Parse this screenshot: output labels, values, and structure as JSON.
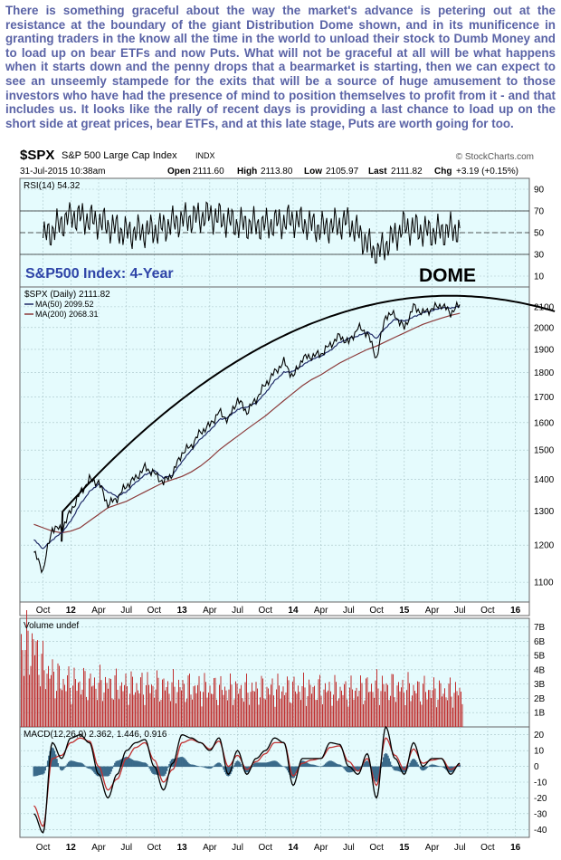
{
  "commentary": "There is something graceful about the way the market's advance is petering out at the resistance at the boundary of the giant Distribution Dome shown, and in its munificence in granting traders in the know all the time in the world to unload their stock to Dumb Money and to load up on bear ETFs and now Puts. What will not be graceful at all will be what happens when it starts down and the penny drops that a bearmarket is starting, then we can expect to see an unseemly stampede for the exits that will be a source of huge amusement to those investors who have had the presence of mind to position themselves to profit from it - and that includes us. It looks like the rally of recent days is providing a last chance to load up on the short side at great prices, bear ETFs, and at this late stage, Puts are worth going for too.",
  "header": {
    "symbol": "$SPX",
    "name": "S&P 500 Large Cap Index",
    "exchange": "INDX",
    "date": "31-Jul-2015 10:38am",
    "brand": "© StockCharts.com",
    "open_label": "Open",
    "open": "2111.60",
    "high_label": "High",
    "high": "2113.80",
    "low_label": "Low",
    "low": "2105.97",
    "last_label": "Last",
    "last": "2111.82",
    "chg_label": "Chg",
    "chg": "+3.19 (+0.15%)"
  },
  "colors": {
    "plot_bg": "#e5fbfd",
    "panel_bg": "#ffffff",
    "grid": "#a8c4c8",
    "price_line": "#000000",
    "ma50": "#1f2a66",
    "ma200": "#8b3a3a",
    "volume": "#c03030",
    "macd": "#000000",
    "macd_signal": "#c03030",
    "histogram": "#3a6a8a",
    "annotation_text": "#2f45a8",
    "commentary_text": "#5a63a6"
  },
  "annotations": {
    "chart_title": "S&P500 Index: 4-Year",
    "dome_label": "DOME"
  },
  "x_axis_labels": [
    "Oct",
    "12",
    "Apr",
    "Jul",
    "Oct",
    "13",
    "Apr",
    "Jul",
    "Oct",
    "14",
    "Apr",
    "Jul",
    "Oct",
    "15",
    "Apr",
    "Jul",
    "Oct",
    "16"
  ],
  "chart_data": [
    {
      "type": "line",
      "panel": "RSI",
      "legend": "RSI(14)",
      "legend_value": "54.32",
      "ylim": [
        0,
        100
      ],
      "y_ticks": [
        "90",
        "70",
        "50",
        "30",
        "10"
      ],
      "reference_lines": [
        70,
        50,
        30
      ],
      "x": [
        "Oct-11",
        "Jan-12",
        "Apr-12",
        "Jul-12",
        "Oct-12",
        "Jan-13",
        "Apr-13",
        "Jul-13",
        "Oct-13",
        "Jan-14",
        "Apr-14",
        "Jul-14",
        "Oct-14",
        "Jan-15",
        "Apr-15",
        "Jul-15"
      ],
      "values": [
        45,
        66,
        60,
        50,
        52,
        62,
        66,
        58,
        57,
        62,
        54,
        60,
        30,
        56,
        50,
        54
      ]
    },
    {
      "type": "line",
      "panel": "Price",
      "ylim": [
        1050,
        2200
      ],
      "y_scale": "log",
      "y_ticks": [
        "2100",
        "2000",
        "1900",
        "1800",
        "1700",
        "1600",
        "1500",
        "1400",
        "1300",
        "1200",
        "1100"
      ],
      "x": [
        "Sep-11",
        "Oct-11",
        "Nov-11",
        "Dec-11",
        "Jan-12",
        "Feb-12",
        "Mar-12",
        "Apr-12",
        "May-12",
        "Jun-12",
        "Jul-12",
        "Aug-12",
        "Sep-12",
        "Oct-12",
        "Nov-12",
        "Dec-12",
        "Jan-13",
        "Feb-13",
        "Mar-13",
        "Apr-13",
        "May-13",
        "Jun-13",
        "Jul-13",
        "Aug-13",
        "Sep-13",
        "Oct-13",
        "Nov-13",
        "Dec-13",
        "Jan-14",
        "Feb-14",
        "Mar-14",
        "Apr-14",
        "May-14",
        "Jun-14",
        "Jul-14",
        "Aug-14",
        "Sep-14",
        "Oct-14",
        "Nov-14",
        "Dec-14",
        "Jan-15",
        "Feb-15",
        "Mar-15",
        "Apr-15",
        "May-15",
        "Jun-15",
        "Jul-15"
      ],
      "series": [
        {
          "name": "$SPX (Daily)",
          "legend_value": "2111.82",
          "values": [
            1180,
            1130,
            1250,
            1245,
            1300,
            1355,
            1400,
            1390,
            1320,
            1340,
            1380,
            1405,
            1440,
            1420,
            1390,
            1420,
            1490,
            1515,
            1565,
            1590,
            1640,
            1610,
            1690,
            1640,
            1690,
            1750,
            1800,
            1845,
            1780,
            1860,
            1870,
            1880,
            1920,
            1960,
            1930,
            2000,
            1975,
            1860,
            2060,
            2060,
            1995,
            2100,
            2070,
            2090,
            2110,
            2070,
            2111
          ]
        },
        {
          "name": "MA(50)",
          "legend_value": "2099.52",
          "values": [
            1215,
            1190,
            1215,
            1235,
            1270,
            1320,
            1360,
            1385,
            1360,
            1345,
            1360,
            1390,
            1415,
            1430,
            1405,
            1415,
            1460,
            1500,
            1540,
            1570,
            1610,
            1620,
            1650,
            1660,
            1675,
            1715,
            1765,
            1800,
            1805,
            1830,
            1855,
            1870,
            1895,
            1930,
            1950,
            1960,
            1980,
            1950,
            2000,
            2040,
            2030,
            2050,
            2070,
            2080,
            2095,
            2095,
            2100
          ]
        },
        {
          "name": "MA(200)",
          "legend_value": "2068.31",
          "values": [
            1260,
            1250,
            1240,
            1235,
            1240,
            1250,
            1270,
            1290,
            1310,
            1320,
            1330,
            1345,
            1360,
            1375,
            1390,
            1400,
            1410,
            1425,
            1445,
            1470,
            1500,
            1525,
            1550,
            1575,
            1600,
            1625,
            1655,
            1685,
            1715,
            1745,
            1770,
            1790,
            1815,
            1840,
            1860,
            1880,
            1900,
            1915,
            1935,
            1955,
            1975,
            1995,
            2015,
            2030,
            2045,
            2058,
            2068
          ]
        }
      ]
    },
    {
      "type": "bar",
      "panel": "Volume",
      "legend": "Volume undef",
      "y_ticks": [
        "7B",
        "6B",
        "5B",
        "4B",
        "3B",
        "2B",
        "1B"
      ],
      "x": [
        "Sep-11",
        "Oct-11",
        "Nov-11",
        "Dec-11",
        "Jan-12",
        "Apr-12",
        "Jul-12",
        "Oct-12",
        "Jan-13",
        "Apr-13",
        "Jul-13",
        "Oct-13",
        "Jan-14",
        "Apr-14",
        "Jul-14",
        "Oct-14",
        "Jan-15",
        "Apr-15",
        "Jul-15"
      ],
      "values": [
        7.2,
        5.2,
        4.6,
        4.0,
        3.9,
        3.8,
        3.6,
        3.6,
        3.5,
        3.4,
        3.3,
        3.3,
        3.4,
        3.3,
        3.2,
        3.6,
        3.4,
        3.2,
        3.1
      ]
    },
    {
      "type": "line",
      "panel": "MACD",
      "legend": "MACD(12,26,9)",
      "legend_values": "2.362, 1.446, 0.916",
      "ylim": [
        -45,
        25
      ],
      "y_ticks": [
        "20",
        "10",
        "0",
        "-10",
        "-20",
        "-30",
        "-40"
      ],
      "x": [
        "Sep-11",
        "Oct-11",
        "Nov-11",
        "Dec-11",
        "Jan-12",
        "Feb-12",
        "Mar-12",
        "Apr-12",
        "May-12",
        "Jun-12",
        "Jul-12",
        "Aug-12",
        "Sep-12",
        "Oct-12",
        "Nov-12",
        "Dec-12",
        "Jan-13",
        "Feb-13",
        "Mar-13",
        "Apr-13",
        "May-13",
        "Jun-13",
        "Jul-13",
        "Aug-13",
        "Sep-13",
        "Oct-13",
        "Nov-13",
        "Dec-13",
        "Jan-14",
        "Feb-14",
        "Mar-14",
        "Apr-14",
        "May-14",
        "Jun-14",
        "Jul-14",
        "Aug-14",
        "Sep-14",
        "Oct-14",
        "Nov-14",
        "Dec-14",
        "Jan-15",
        "Feb-15",
        "Mar-15",
        "Apr-15",
        "May-15",
        "Jun-15",
        "Jul-15"
      ],
      "series": [
        {
          "name": "MACD",
          "values": [
            -30,
            -42,
            15,
            5,
            18,
            20,
            15,
            -5,
            -20,
            -5,
            10,
            15,
            17,
            0,
            -15,
            2,
            20,
            18,
            15,
            10,
            18,
            -5,
            10,
            -5,
            5,
            10,
            18,
            15,
            -12,
            5,
            5,
            5,
            15,
            14,
            0,
            -5,
            8,
            -20,
            25,
            5,
            -5,
            15,
            0,
            5,
            5,
            -5,
            2
          ]
        },
        {
          "name": "Signal",
          "values": [
            -25,
            -38,
            5,
            7,
            15,
            18,
            16,
            0,
            -15,
            -8,
            5,
            12,
            15,
            4,
            -10,
            -2,
            15,
            17,
            15,
            11,
            16,
            0,
            7,
            -2,
            3,
            8,
            15,
            15,
            -6,
            2,
            4,
            5,
            12,
            13,
            3,
            -3,
            5,
            -12,
            18,
            7,
            -2,
            11,
            2,
            4,
            5,
            -2,
            1
          ]
        }
      ]
    }
  ]
}
